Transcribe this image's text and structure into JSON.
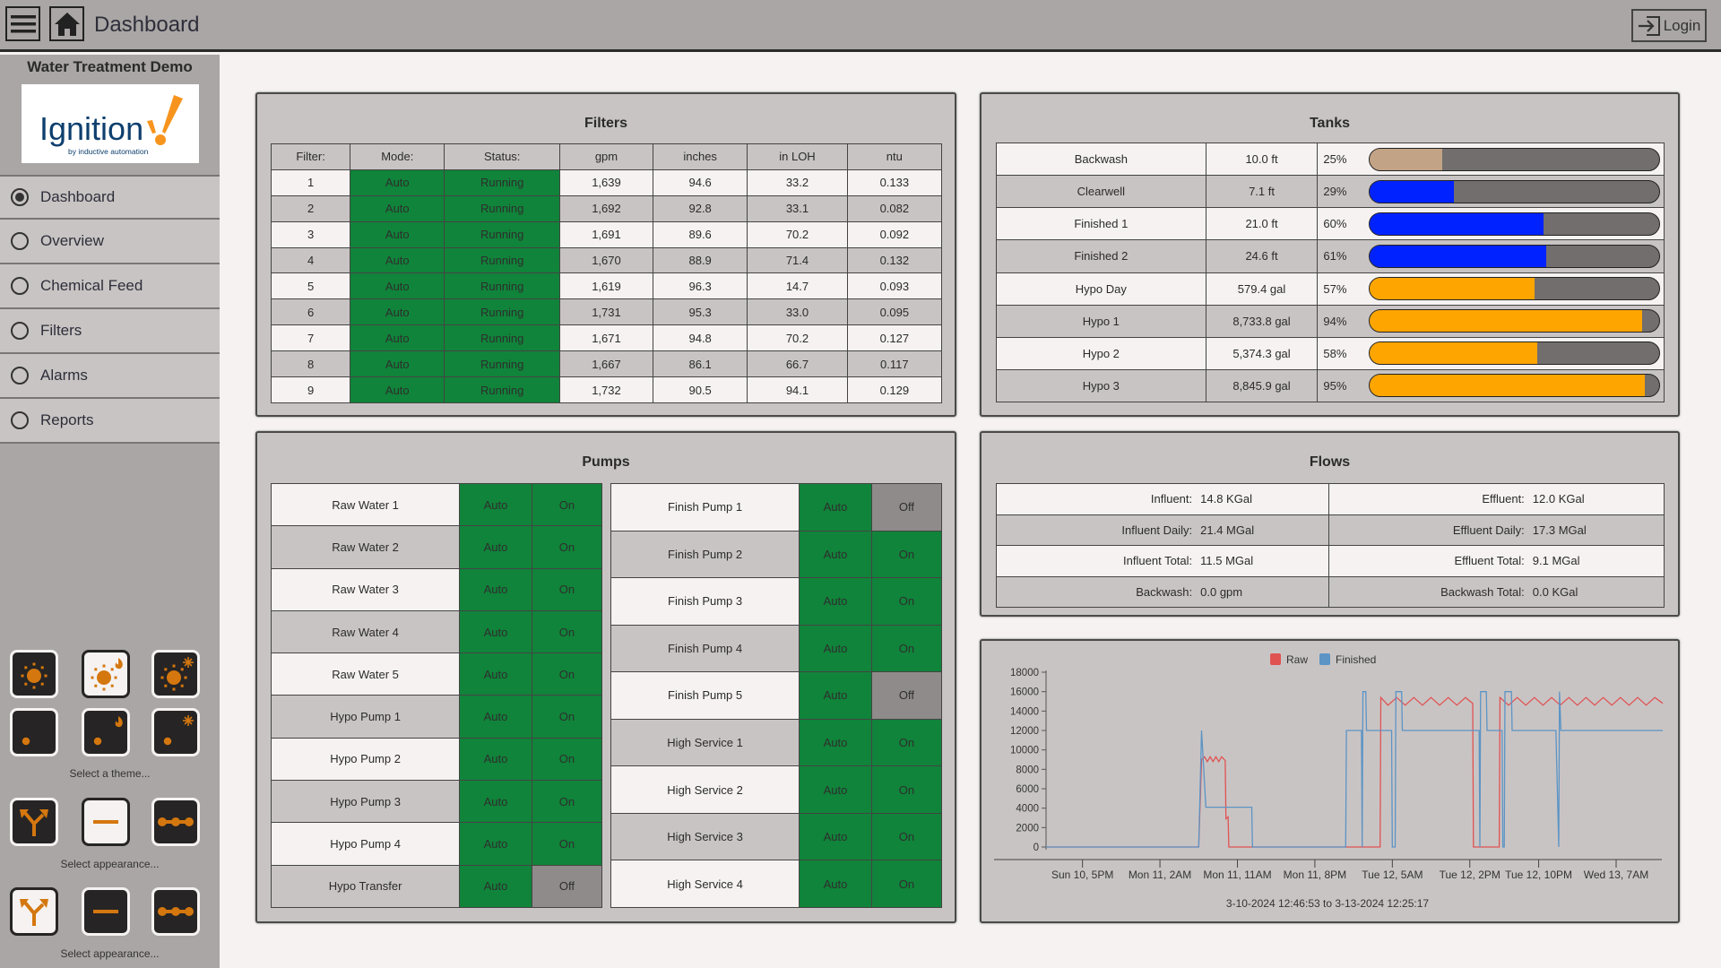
{
  "header": {
    "title": "Dashboard",
    "login_label": "Login"
  },
  "sidebar": {
    "app_name": "Water Treatment Demo",
    "logo_text": "Ignition",
    "logo_sub": "by inductive automation",
    "items": [
      {
        "label": "Dashboard",
        "selected": true
      },
      {
        "label": "Overview"
      },
      {
        "label": "Chemical Feed"
      },
      {
        "label": "Filters"
      },
      {
        "label": "Alarms"
      },
      {
        "label": "Reports"
      }
    ],
    "theme_label": "Select a theme...",
    "appearance_label_1": "Select appearance...",
    "appearance_label_2": "Select appearance...",
    "theme_icons": [
      "sun-icon",
      "sun-fire-icon",
      "sun-snowflake-icon",
      "moon-icon",
      "moon-fire-icon",
      "moon-snowflake-icon"
    ],
    "theme_selected": 1,
    "appearance1_selected": 1,
    "appearance2_selected": 0,
    "accent": "#d4770f"
  },
  "filters": {
    "title": "Filters",
    "columns": [
      "Filter:",
      "Mode:",
      "Status:",
      "gpm",
      "inches",
      "in LOH",
      "ntu"
    ],
    "rows": [
      [
        "1",
        "Auto",
        "Running",
        "1,639",
        "94.6",
        "33.2",
        "0.133"
      ],
      [
        "2",
        "Auto",
        "Running",
        "1,692",
        "92.8",
        "33.1",
        "0.082"
      ],
      [
        "3",
        "Auto",
        "Running",
        "1,691",
        "89.6",
        "70.2",
        "0.092"
      ],
      [
        "4",
        "Auto",
        "Running",
        "1,670",
        "88.9",
        "71.4",
        "0.132"
      ],
      [
        "5",
        "Auto",
        "Running",
        "1,619",
        "96.3",
        "14.7",
        "0.093"
      ],
      [
        "6",
        "Auto",
        "Running",
        "1,731",
        "95.3",
        "33.0",
        "0.095"
      ],
      [
        "7",
        "Auto",
        "Running",
        "1,671",
        "94.8",
        "70.2",
        "0.127"
      ],
      [
        "8",
        "Auto",
        "Running",
        "1,667",
        "86.1",
        "66.7",
        "0.117"
      ],
      [
        "9",
        "Auto",
        "Running",
        "1,732",
        "90.5",
        "94.1",
        "0.129"
      ]
    ]
  },
  "tanks": {
    "title": "Tanks",
    "rows": [
      {
        "name": "Backwash",
        "level": "10.0 ft",
        "pct": "25%",
        "fill": 25,
        "color": "#c3a385"
      },
      {
        "name": "Clearwell",
        "level": "7.1 ft",
        "pct": "29%",
        "fill": 29,
        "color": "#0022ff"
      },
      {
        "name": "Finished 1",
        "level": "21.0 ft",
        "pct": "60%",
        "fill": 60,
        "color": "#0022ff"
      },
      {
        "name": "Finished 2",
        "level": "24.6 ft",
        "pct": "61%",
        "fill": 61,
        "color": "#0022ff"
      },
      {
        "name": "Hypo Day",
        "level": "579.4 gal",
        "pct": "57%",
        "fill": 57,
        "color": "#ffa500"
      },
      {
        "name": "Hypo 1",
        "level": "8,733.8 gal",
        "pct": "94%",
        "fill": 94,
        "color": "#ffa500"
      },
      {
        "name": "Hypo 2",
        "level": "5,374.3 gal",
        "pct": "58%",
        "fill": 58,
        "color": "#ffa500"
      },
      {
        "name": "Hypo 3",
        "level": "8,845.9 gal",
        "pct": "95%",
        "fill": 95,
        "color": "#ffa500"
      }
    ]
  },
  "pumps": {
    "title": "Pumps",
    "left": [
      [
        "Raw Water 1",
        "Auto",
        "On"
      ],
      [
        "Raw Water 2",
        "Auto",
        "On"
      ],
      [
        "Raw Water 3",
        "Auto",
        "On"
      ],
      [
        "Raw Water 4",
        "Auto",
        "On"
      ],
      [
        "Raw Water 5",
        "Auto",
        "On"
      ],
      [
        "Hypo Pump 1",
        "Auto",
        "On"
      ],
      [
        "Hypo Pump 2",
        "Auto",
        "On"
      ],
      [
        "Hypo Pump 3",
        "Auto",
        "On"
      ],
      [
        "Hypo Pump 4",
        "Auto",
        "On"
      ],
      [
        "Hypo Transfer",
        "Auto",
        "Off"
      ]
    ],
    "right": [
      [
        "Finish Pump 1",
        "Auto",
        "Off"
      ],
      [
        "Finish Pump 2",
        "Auto",
        "On"
      ],
      [
        "Finish Pump 3",
        "Auto",
        "On"
      ],
      [
        "Finish Pump 4",
        "Auto",
        "On"
      ],
      [
        "Finish Pump 5",
        "Auto",
        "Off"
      ],
      [
        "High Service 1",
        "Auto",
        "On"
      ],
      [
        "High Service 2",
        "Auto",
        "On"
      ],
      [
        "High Service 3",
        "Auto",
        "On"
      ],
      [
        "High Service 4",
        "Auto",
        "On"
      ]
    ],
    "on_color": "#10843a",
    "off_color": "#8f8b8a"
  },
  "flows": {
    "title": "Flows",
    "rows": [
      [
        "Influent:",
        "14.8 KGal",
        "Effluent:",
        "12.0 KGal"
      ],
      [
        "Influent Daily:",
        "21.4 MGal",
        "Effluent Daily:",
        "17.3 MGal"
      ],
      [
        "Influent Total:",
        "11.5 MGal",
        "Effluent Total:",
        "9.1 MGal"
      ],
      [
        "Backwash:",
        "0.0 gpm",
        "Backwash Total:",
        "0.0 KGal"
      ]
    ]
  },
  "chart_data": {
    "type": "line",
    "caption": "3-10-2024 12:46:53 to 3-13-2024 12:25:17",
    "x_range": [
      "3-10 12:46",
      "3-13 12:25"
    ],
    "ylim": [
      0,
      18000
    ],
    "yticks": [
      0,
      2000,
      4000,
      6000,
      8000,
      10000,
      12000,
      14000,
      16000,
      18000
    ],
    "xticks": [
      {
        "label": "Sun 10, 5PM",
        "time": "3-10 17:00"
      },
      {
        "label": "Mon 11, 2AM",
        "time": "3-11 02:00"
      },
      {
        "label": "Mon 11, 11AM",
        "time": "3-11 11:00"
      },
      {
        "label": "Mon 11, 8PM",
        "time": "3-11 20:00"
      },
      {
        "label": "Tue 12, 5AM",
        "time": "3-12 05:00"
      },
      {
        "label": "Tue 12, 2PM",
        "time": "3-12 14:00"
      },
      {
        "label": "Tue 12, 10PM",
        "time": "3-12 22:00"
      },
      {
        "label": "Wed 13, 7AM",
        "time": "3-13 07:00"
      }
    ],
    "legend": "top",
    "grid": false,
    "series": [
      {
        "name": "Raw",
        "color": "#e05252",
        "points": [
          [
            "3-10 12:46",
            0
          ],
          [
            "3-11 06:30",
            0
          ],
          [
            "3-11 06:50",
            9000
          ],
          [
            "3-11 07:10",
            9300
          ],
          [
            "3-11 07:30",
            8800
          ],
          [
            "3-11 07:50",
            9300
          ],
          [
            "3-11 08:10",
            8800
          ],
          [
            "3-11 08:30",
            9300
          ],
          [
            "3-11 08:50",
            8800
          ],
          [
            "3-11 09:10",
            9300
          ],
          [
            "3-11 09:35",
            8900
          ],
          [
            "3-11 09:40",
            2900
          ],
          [
            "3-11 09:55",
            3100
          ],
          [
            "3-11 10:00",
            0
          ],
          [
            "3-12 03:35",
            0
          ],
          [
            "3-12 03:40",
            15400
          ],
          [
            "3-12 04:30",
            14600
          ],
          [
            "3-12 05:30",
            15400
          ],
          [
            "3-12 06:30",
            14600
          ],
          [
            "3-12 07:30",
            15400
          ],
          [
            "3-12 08:30",
            14600
          ],
          [
            "3-12 09:30",
            15400
          ],
          [
            "3-12 10:30",
            14600
          ],
          [
            "3-12 11:30",
            15400
          ],
          [
            "3-12 12:30",
            14600
          ],
          [
            "3-12 13:30",
            15400
          ],
          [
            "3-12 14:20",
            14800
          ],
          [
            "3-12 14:25",
            0
          ],
          [
            "3-12 17:25",
            0
          ],
          [
            "3-12 17:30",
            15400
          ],
          [
            "3-12 18:30",
            14600
          ],
          [
            "3-12 19:30",
            15400
          ],
          [
            "3-12 20:30",
            14600
          ],
          [
            "3-12 21:30",
            15400
          ],
          [
            "3-12 22:30",
            14600
          ],
          [
            "3-12 23:30",
            15400
          ],
          [
            "3-13 00:30",
            14600
          ],
          [
            "3-13 01:30",
            15400
          ],
          [
            "3-13 02:30",
            14600
          ],
          [
            "3-13 03:30",
            15400
          ],
          [
            "3-13 04:30",
            14600
          ],
          [
            "3-13 05:30",
            15400
          ],
          [
            "3-13 06:30",
            14600
          ],
          [
            "3-13 07:30",
            15400
          ],
          [
            "3-13 08:30",
            14600
          ],
          [
            "3-13 09:30",
            15400
          ],
          [
            "3-13 10:30",
            14600
          ],
          [
            "3-13 11:30",
            15400
          ],
          [
            "3-13 12:25",
            14800
          ]
        ]
      },
      {
        "name": "Finished",
        "color": "#5b94c5",
        "points": [
          [
            "3-10 12:46",
            0
          ],
          [
            "3-11 06:30",
            0
          ],
          [
            "3-11 06:50",
            12000
          ],
          [
            "3-11 07:20",
            4100
          ],
          [
            "3-11 12:40",
            4100
          ],
          [
            "3-11 12:45",
            0
          ],
          [
            "3-11 23:35",
            0
          ],
          [
            "3-11 23:40",
            12000
          ],
          [
            "3-12 01:25",
            12000
          ],
          [
            "3-12 01:30",
            0
          ],
          [
            "3-12 01:35",
            16000
          ],
          [
            "3-12 01:55",
            16000
          ],
          [
            "3-12 02:00",
            12000
          ],
          [
            "3-12 04:55",
            12000
          ],
          [
            "3-12 05:00",
            0
          ],
          [
            "3-12 05:20",
            0
          ],
          [
            "3-12 05:25",
            16000
          ],
          [
            "3-12 06:05",
            16000
          ],
          [
            "3-12 06:10",
            12000
          ],
          [
            "3-12 15:05",
            12000
          ],
          [
            "3-12 15:10",
            0
          ],
          [
            "3-12 15:15",
            16000
          ],
          [
            "3-12 15:55",
            16000
          ],
          [
            "3-12 16:00",
            12000
          ],
          [
            "3-12 17:45",
            12000
          ],
          [
            "3-12 17:50",
            0
          ],
          [
            "3-12 18:00",
            0
          ],
          [
            "3-12 18:05",
            16000
          ],
          [
            "3-12 18:50",
            16000
          ],
          [
            "3-12 18:55",
            12000
          ],
          [
            "3-13 00:00",
            12000
          ],
          [
            "3-13 00:20",
            0
          ],
          [
            "3-13 00:25",
            16000
          ],
          [
            "3-13 00:35",
            12000
          ],
          [
            "3-13 12:25",
            12000
          ]
        ]
      }
    ]
  }
}
